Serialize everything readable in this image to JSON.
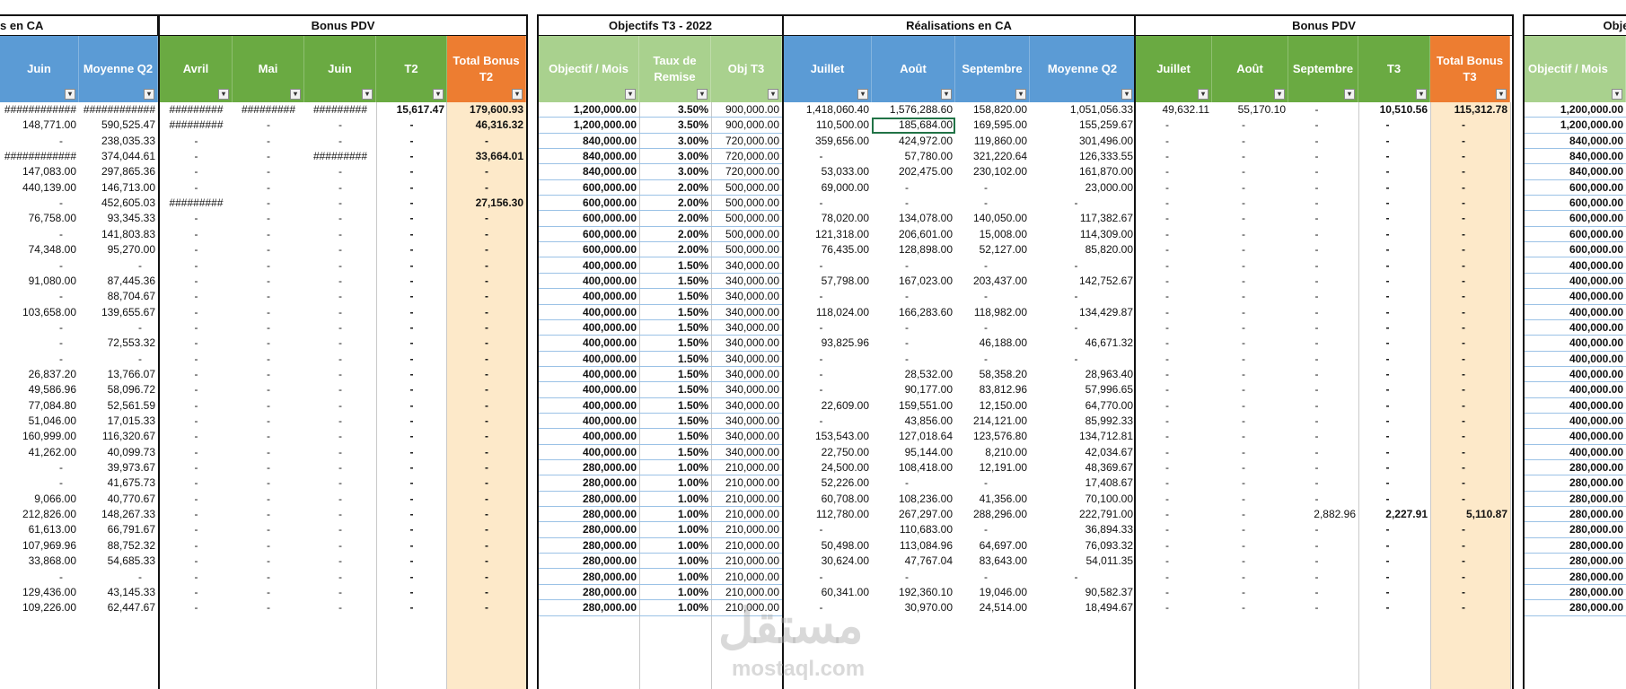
{
  "groups": {
    "ca": "s en CA",
    "bonus_t2": "Bonus PDV",
    "obj_t3": "Objectifs T3 - 2022",
    "real_t3": "Réalisations en CA",
    "bonus_t3": "Bonus PDV",
    "obj_next": "Object"
  },
  "headers": {
    "juin": "Juin",
    "moy_q2": "Moyenne Q2",
    "avril": "Avril",
    "mai": "Mai",
    "juin2": "Juin",
    "t2": "T2",
    "total_bonus_t2": "Total Bonus T2",
    "obj_mois": "Objectif / Mois",
    "taux": "Taux de Remise",
    "obj_t3": "Obj T3",
    "juillet": "Juillet",
    "aout": "Août",
    "septembre": "Septembre",
    "moy_q2b": "Moyenne Q2",
    "juillet2": "Juillet",
    "aout2": "Août",
    "septembre2": "Septembre",
    "t3": "T3",
    "total_bonus_t3": "Total Bonus T3",
    "obj_mois2": "Objectif / Mois"
  },
  "filter_glyph": "▾",
  "colors": {
    "blue": "#5b9bd5",
    "green": "#6aaa42",
    "orange": "#ed7d31",
    "light_green": "#a9d18e",
    "bonus_fill": "#fde9c9"
  },
  "rows": [
    [
      "############",
      "############",
      "#########",
      "#########",
      "#########",
      "15,617.47",
      "179,600.93",
      "1,200,000.00",
      "3.50%",
      "900,000.00",
      "1,418,060.40",
      "1,576,288.60",
      "158,820.00",
      "1,051,056.33",
      "49,632.11",
      "55,170.10",
      "-",
      "10,510.56",
      "115,312.78",
      "1,200,000.00"
    ],
    [
      "148,771.00",
      "590,525.47",
      "#########",
      "-",
      "-",
      "-",
      "46,316.32",
      "1,200,000.00",
      "3.50%",
      "900,000.00",
      "110,500.00",
      "185,684.00",
      "169,595.00",
      "155,259.67",
      "-",
      "-",
      "-",
      "-",
      "-",
      "1,200,000.00"
    ],
    [
      "-",
      "238,035.33",
      "-",
      "-",
      "-",
      "-",
      "-",
      "840,000.00",
      "3.00%",
      "720,000.00",
      "359,656.00",
      "424,972.00",
      "119,860.00",
      "301,496.00",
      "-",
      "-",
      "-",
      "-",
      "-",
      "840,000.00"
    ],
    [
      "############",
      "374,044.61",
      "-",
      "-",
      "#########",
      "-",
      "33,664.01",
      "840,000.00",
      "3.00%",
      "720,000.00",
      "-",
      "57,780.00",
      "321,220.64",
      "126,333.55",
      "-",
      "-",
      "-",
      "-",
      "-",
      "840,000.00"
    ],
    [
      "147,083.00",
      "297,865.36",
      "-",
      "-",
      "-",
      "-",
      "-",
      "840,000.00",
      "3.00%",
      "720,000.00",
      "53,033.00",
      "202,475.00",
      "230,102.00",
      "161,870.00",
      "-",
      "-",
      "-",
      "-",
      "-",
      "840,000.00"
    ],
    [
      "440,139.00",
      "146,713.00",
      "-",
      "-",
      "-",
      "-",
      "-",
      "600,000.00",
      "2.00%",
      "500,000.00",
      "69,000.00",
      "-",
      "-",
      "23,000.00",
      "-",
      "-",
      "-",
      "-",
      "-",
      "600,000.00"
    ],
    [
      "-",
      "452,605.03",
      "#########",
      "-",
      "-",
      "-",
      "27,156.30",
      "600,000.00",
      "2.00%",
      "500,000.00",
      "-",
      "-",
      "-",
      "-",
      "-",
      "-",
      "-",
      "-",
      "-",
      "600,000.00"
    ],
    [
      "76,758.00",
      "93,345.33",
      "-",
      "-",
      "-",
      "-",
      "-",
      "600,000.00",
      "2.00%",
      "500,000.00",
      "78,020.00",
      "134,078.00",
      "140,050.00",
      "117,382.67",
      "-",
      "-",
      "-",
      "-",
      "-",
      "600,000.00"
    ],
    [
      "-",
      "141,803.83",
      "-",
      "-",
      "-",
      "-",
      "-",
      "600,000.00",
      "2.00%",
      "500,000.00",
      "121,318.00",
      "206,601.00",
      "15,008.00",
      "114,309.00",
      "-",
      "-",
      "-",
      "-",
      "-",
      "600,000.00"
    ],
    [
      "74,348.00",
      "95,270.00",
      "-",
      "-",
      "-",
      "-",
      "-",
      "600,000.00",
      "2.00%",
      "500,000.00",
      "76,435.00",
      "128,898.00",
      "52,127.00",
      "85,820.00",
      "-",
      "-",
      "-",
      "-",
      "-",
      "600,000.00"
    ],
    [
      "-",
      "-",
      "-",
      "-",
      "-",
      "-",
      "-",
      "400,000.00",
      "1.50%",
      "340,000.00",
      "-",
      "-",
      "-",
      "-",
      "-",
      "-",
      "-",
      "-",
      "-",
      "400,000.00"
    ],
    [
      "91,080.00",
      "87,445.36",
      "-",
      "-",
      "-",
      "-",
      "-",
      "400,000.00",
      "1.50%",
      "340,000.00",
      "57,798.00",
      "167,023.00",
      "203,437.00",
      "142,752.67",
      "-",
      "-",
      "-",
      "-",
      "-",
      "400,000.00"
    ],
    [
      "-",
      "88,704.67",
      "-",
      "-",
      "-",
      "-",
      "-",
      "400,000.00",
      "1.50%",
      "340,000.00",
      "-",
      "-",
      "-",
      "-",
      "-",
      "-",
      "-",
      "-",
      "-",
      "400,000.00"
    ],
    [
      "103,658.00",
      "139,655.67",
      "-",
      "-",
      "-",
      "-",
      "-",
      "400,000.00",
      "1.50%",
      "340,000.00",
      "118,024.00",
      "166,283.60",
      "118,982.00",
      "134,429.87",
      "-",
      "-",
      "-",
      "-",
      "-",
      "400,000.00"
    ],
    [
      "-",
      "-",
      "-",
      "-",
      "-",
      "-",
      "-",
      "400,000.00",
      "1.50%",
      "340,000.00",
      "-",
      "-",
      "-",
      "-",
      "-",
      "-",
      "-",
      "-",
      "-",
      "400,000.00"
    ],
    [
      "-",
      "72,553.32",
      "-",
      "-",
      "-",
      "-",
      "-",
      "400,000.00",
      "1.50%",
      "340,000.00",
      "93,825.96",
      "-",
      "46,188.00",
      "46,671.32",
      "-",
      "-",
      "-",
      "-",
      "-",
      "400,000.00"
    ],
    [
      "-",
      "-",
      "-",
      "-",
      "-",
      "-",
      "-",
      "400,000.00",
      "1.50%",
      "340,000.00",
      "-",
      "-",
      "-",
      "-",
      "-",
      "-",
      "-",
      "-",
      "-",
      "400,000.00"
    ],
    [
      "26,837.20",
      "13,766.07",
      "-",
      "-",
      "-",
      "-",
      "-",
      "400,000.00",
      "1.50%",
      "340,000.00",
      "-",
      "28,532.00",
      "58,358.20",
      "28,963.40",
      "-",
      "-",
      "-",
      "-",
      "-",
      "400,000.00"
    ],
    [
      "49,586.96",
      "58,096.72",
      "-",
      "-",
      "-",
      "-",
      "-",
      "400,000.00",
      "1.50%",
      "340,000.00",
      "-",
      "90,177.00",
      "83,812.96",
      "57,996.65",
      "-",
      "-",
      "-",
      "-",
      "-",
      "400,000.00"
    ],
    [
      "77,084.80",
      "52,561.59",
      "-",
      "-",
      "-",
      "-",
      "-",
      "400,000.00",
      "1.50%",
      "340,000.00",
      "22,609.00",
      "159,551.00",
      "12,150.00",
      "64,770.00",
      "-",
      "-",
      "-",
      "-",
      "-",
      "400,000.00"
    ],
    [
      "51,046.00",
      "17,015.33",
      "-",
      "-",
      "-",
      "-",
      "-",
      "400,000.00",
      "1.50%",
      "340,000.00",
      "-",
      "43,856.00",
      "214,121.00",
      "85,992.33",
      "-",
      "-",
      "-",
      "-",
      "-",
      "400,000.00"
    ],
    [
      "160,999.00",
      "116,320.67",
      "-",
      "-",
      "-",
      "-",
      "-",
      "400,000.00",
      "1.50%",
      "340,000.00",
      "153,543.00",
      "127,018.64",
      "123,576.80",
      "134,712.81",
      "-",
      "-",
      "-",
      "-",
      "-",
      "400,000.00"
    ],
    [
      "41,262.00",
      "40,099.73",
      "-",
      "-",
      "-",
      "-",
      "-",
      "400,000.00",
      "1.50%",
      "340,000.00",
      "22,750.00",
      "95,144.00",
      "8,210.00",
      "42,034.67",
      "-",
      "-",
      "-",
      "-",
      "-",
      "400,000.00"
    ],
    [
      "-",
      "39,973.67",
      "-",
      "-",
      "-",
      "-",
      "-",
      "280,000.00",
      "1.00%",
      "210,000.00",
      "24,500.00",
      "108,418.00",
      "12,191.00",
      "48,369.67",
      "-",
      "-",
      "-",
      "-",
      "-",
      "280,000.00"
    ],
    [
      "-",
      "41,675.73",
      "-",
      "-",
      "-",
      "-",
      "-",
      "280,000.00",
      "1.00%",
      "210,000.00",
      "52,226.00",
      "-",
      "-",
      "17,408.67",
      "-",
      "-",
      "-",
      "-",
      "-",
      "280,000.00"
    ],
    [
      "9,066.00",
      "40,770.67",
      "-",
      "-",
      "-",
      "-",
      "-",
      "280,000.00",
      "1.00%",
      "210,000.00",
      "60,708.00",
      "108,236.00",
      "41,356.00",
      "70,100.00",
      "-",
      "-",
      "-",
      "-",
      "-",
      "280,000.00"
    ],
    [
      "212,826.00",
      "148,267.33",
      "-",
      "-",
      "-",
      "-",
      "-",
      "280,000.00",
      "1.00%",
      "210,000.00",
      "112,780.00",
      "267,297.00",
      "288,296.00",
      "222,791.00",
      "-",
      "-",
      "2,882.96",
      "2,227.91",
      "5,110.87",
      "280,000.00"
    ],
    [
      "61,613.00",
      "66,791.67",
      "-",
      "-",
      "-",
      "-",
      "-",
      "280,000.00",
      "1.00%",
      "210,000.00",
      "-",
      "110,683.00",
      "-",
      "36,894.33",
      "-",
      "-",
      "-",
      "-",
      "-",
      "280,000.00"
    ],
    [
      "107,969.96",
      "88,752.32",
      "-",
      "-",
      "-",
      "-",
      "-",
      "280,000.00",
      "1.00%",
      "210,000.00",
      "50,498.00",
      "113,084.96",
      "64,697.00",
      "76,093.32",
      "-",
      "-",
      "-",
      "-",
      "-",
      "280,000.00"
    ],
    [
      "33,868.00",
      "54,685.33",
      "-",
      "-",
      "-",
      "-",
      "-",
      "280,000.00",
      "1.00%",
      "210,000.00",
      "30,624.00",
      "47,767.04",
      "83,643.00",
      "54,011.35",
      "-",
      "-",
      "-",
      "-",
      "-",
      "280,000.00"
    ],
    [
      "-",
      "-",
      "-",
      "-",
      "-",
      "-",
      "-",
      "280,000.00",
      "1.00%",
      "210,000.00",
      "-",
      "-",
      "-",
      "-",
      "-",
      "-",
      "-",
      "-",
      "-",
      "280,000.00"
    ],
    [
      "129,436.00",
      "43,145.33",
      "-",
      "-",
      "-",
      "-",
      "-",
      "280,000.00",
      "1.00%",
      "210,000.00",
      "60,341.00",
      "192,360.10",
      "19,046.00",
      "90,582.37",
      "-",
      "-",
      "-",
      "-",
      "-",
      "280,000.00"
    ],
    [
      "109,226.00",
      "62,447.67",
      "-",
      "-",
      "-",
      "-",
      "-",
      "280,000.00",
      "1.00%",
      "210,000.00",
      "-",
      "30,970.00",
      "24,514.00",
      "18,494.67",
      "-",
      "-",
      "-",
      "-",
      "-",
      "280,000.00"
    ]
  ],
  "watermark": {
    "main": "مستقل",
    "sub": "mostaql.com"
  }
}
